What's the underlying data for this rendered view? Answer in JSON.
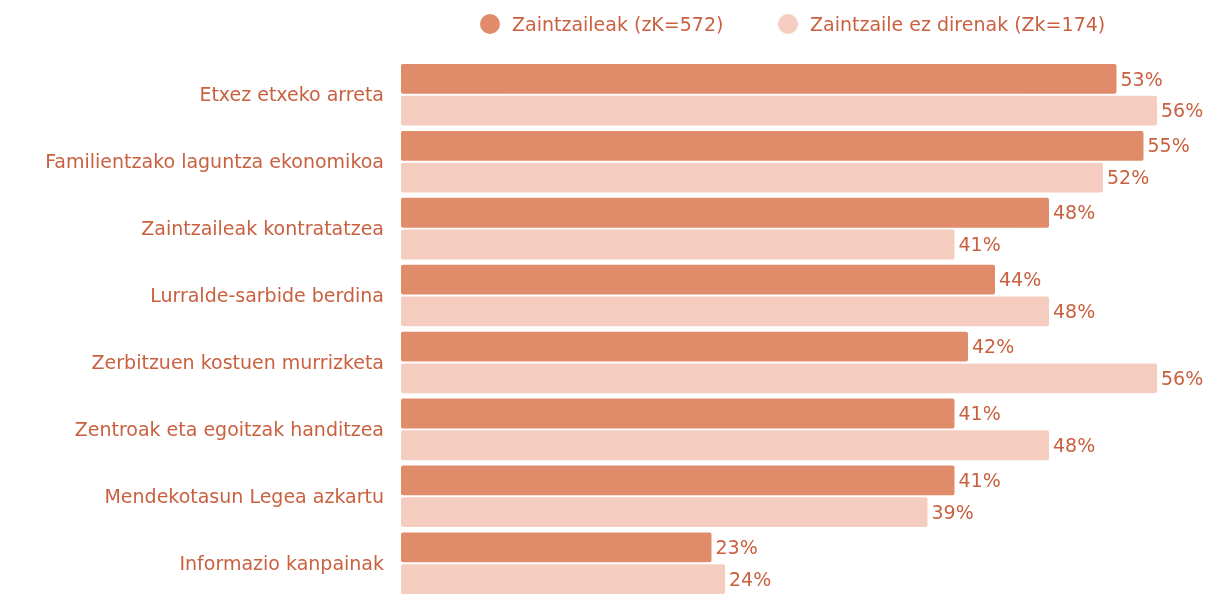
{
  "chart_data": {
    "type": "bar",
    "orientation": "horizontal",
    "categories": [
      "Etxez etxeko arreta",
      "Familientzako laguntza ekonomikoa",
      "Zaintzaileak kontratatzea",
      "Lurralde-sarbide berdina",
      "Zerbitzuen kostuen murrizketa",
      "Zentroak eta egoitzak handitzea",
      "Mendekotasun Legea azkartu",
      "Informazio kanpainak"
    ],
    "series": [
      {
        "name": "Zaintzaileak (zK=572)",
        "color": "#e08c6a",
        "values": [
          53,
          55,
          48,
          44,
          42,
          41,
          41,
          23
        ],
        "value_labels": [
          "53%",
          "55%",
          "48%",
          "44%",
          "42%",
          "41%",
          "41%",
          "23%"
        ]
      },
      {
        "name": "Zaintzaile ez direnak (Zk=174)",
        "color": "#f5cdc0",
        "values": [
          56,
          52,
          41,
          48,
          56,
          48,
          39,
          24
        ],
        "value_labels": [
          "56%",
          "52%",
          "41%",
          "48%",
          "56%",
          "48%",
          "39%",
          "24%"
        ]
      }
    ],
    "legend": "top"
  }
}
